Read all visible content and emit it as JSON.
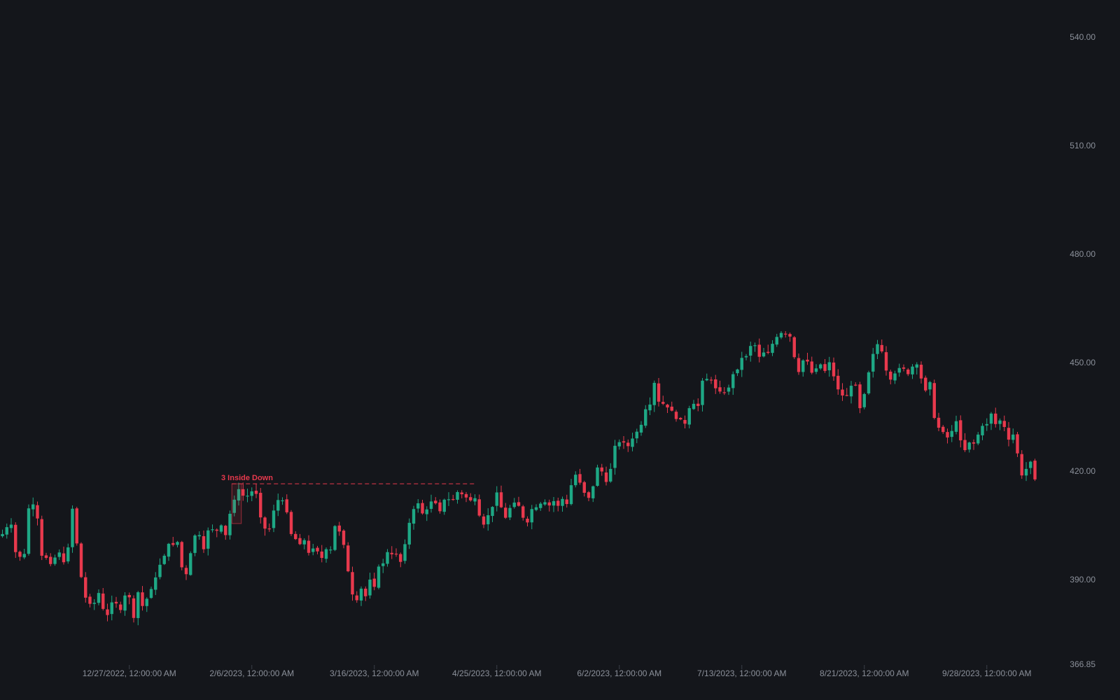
{
  "colors": {
    "background": "#14161b",
    "up": "#1ea885",
    "down": "#e8394d",
    "axis_text": "#8b909a",
    "tick": "#3a3e47"
  },
  "chart_data": {
    "type": "candlestick",
    "y_ticks": [
      "540.00",
      "510.00",
      "480.00",
      "450.00",
      "420.00",
      "390.00",
      "366.85"
    ],
    "ylim": [
      366.85,
      550
    ],
    "x_ticks": [
      {
        "label": "12/27/2022, 12:00:00 AM",
        "index": 29
      },
      {
        "label": "2/6/2023, 12:00:00 AM",
        "index": 57
      },
      {
        "label": "3/16/2023, 12:00:00 AM",
        "index": 85
      },
      {
        "label": "4/25/2023, 12:00:00 AM",
        "index": 113
      },
      {
        "label": "6/2/2023, 12:00:00 AM",
        "index": 141
      },
      {
        "label": "7/13/2023, 12:00:00 AM",
        "index": 169
      },
      {
        "label": "8/21/2023, 12:00:00 AM",
        "index": 197
      },
      {
        "label": "9/28/2023, 12:00:00 AM",
        "index": 225
      }
    ],
    "annotation": {
      "label": "3 Inside Down",
      "start_index": 53,
      "end_index": 108,
      "level": 416.5,
      "box_high": 416.5,
      "box_low": 405.5
    },
    "closes": [
      402.6,
      404.5,
      405.2,
      397.6,
      396.3,
      397.1,
      409.7,
      410.8,
      406.9,
      396.6,
      396.0,
      394.3,
      396.1,
      397.5,
      394.8,
      398.9,
      409.6,
      400.0,
      390.7,
      385.0,
      383.3,
      383.6,
      386.3,
      381.9,
      380.2,
      383.7,
      383.4,
      381.6,
      385.6,
      385.1,
      379.4,
      386.5,
      382.7,
      384.7,
      387.4,
      390.6,
      394.1,
      396.6,
      399.9,
      399.6,
      400.4,
      393.4,
      391.5,
      397.3,
      402.2,
      402.3,
      398.4,
      403.6,
      403.9,
      403.5,
      405.0,
      402.3,
      408.2,
      412.1,
      415.0,
      413.2,
      413.2,
      414.4,
      413.7,
      407.2,
      404.1,
      404.1,
      409.1,
      412.0,
      411.9,
      408.6,
      402.6,
      401.2,
      399.8,
      400.9,
      397.4,
      398.6,
      397.8,
      396.0,
      398.4,
      398.3,
      404.8,
      403.3,
      399.6,
      392.3,
      385.9,
      384.3,
      387.5,
      385.4,
      390.0,
      388.0,
      393.6,
      394.5,
      397.6,
      397.0,
      397.0,
      394.9,
      399.8,
      405.7,
      409.5,
      411.1,
      408.3,
      409.4,
      411.6,
      411.1,
      408.9,
      412.1,
      412.2,
      412.1,
      414.2,
      413.6,
      412.7,
      411.9,
      412.5,
      407.7,
      405.2,
      407.8,
      410.1,
      414.1,
      410.0,
      407.1,
      409.8,
      411.3,
      410.4,
      407.1,
      405.8,
      409.5,
      410.0,
      411.0,
      411.4,
      410.5,
      411.7,
      410.4,
      412.3,
      410.9,
      416.1,
      419.0,
      416.8,
      414.0,
      412.6,
      415.8,
      421.0,
      419.9,
      417.0,
      420.6,
      427.0,
      428.0,
      427.9,
      426.9,
      429.0,
      430.9,
      432.8,
      437.1,
      438.4,
      444.4,
      439.2,
      438.6,
      437.6,
      436.7,
      434.4,
      434.3,
      433.1,
      437.4,
      438.6,
      438.0,
      445.0,
      445.5,
      445.2,
      442.9,
      442.0,
      441.8,
      443.1,
      446.8,
      448.1,
      451.3,
      451.8,
      454.6,
      454.8,
      451.6,
      452.8,
      452.7,
      455.2,
      457.1,
      458.2,
      458.0,
      457.2,
      451.5,
      447.4,
      450.6,
      450.3,
      447.2,
      448.4,
      449.5,
      447.7,
      450.1,
      446.2,
      442.6,
      440.9,
      440.9,
      443.6,
      443.8,
      437.4,
      441.3,
      447.3,
      452.4,
      455.1,
      453.1,
      447.8,
      445.3,
      447.0,
      448.5,
      448.3,
      446.8,
      448.9,
      449.5,
      445.6,
      442.3,
      444.6,
      434.7,
      432.0,
      430.8,
      429.3,
      431.1,
      433.8,
      428.5,
      425.8,
      427.9,
      427.6,
      430.1,
      432.5,
      433.0,
      435.9,
      433.0,
      434.0,
      432.2,
      428.7,
      430.1,
      424.9,
      418.8,
      420.6,
      422.6,
      417.7
    ]
  }
}
